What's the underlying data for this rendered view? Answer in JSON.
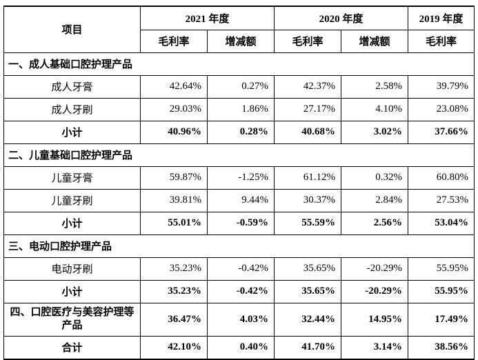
{
  "header": {
    "item_label": "项目",
    "years": [
      "2021 年度",
      "2020 年度",
      "2019 年度"
    ],
    "subcols": [
      "毛利率",
      "增减额",
      "毛利率",
      "增减额",
      "毛利率"
    ]
  },
  "sections": [
    {
      "title": "一、成人基础口腔护理产品",
      "rows": [
        {
          "name": "成人牙膏",
          "values": [
            "42.64%",
            "0.27%",
            "42.37%",
            "2.58%",
            "39.79%"
          ]
        },
        {
          "name": "成人牙刷",
          "values": [
            "29.03%",
            "1.86%",
            "27.17%",
            "4.10%",
            "23.08%"
          ]
        }
      ],
      "subtotal": {
        "name": "小计",
        "values": [
          "40.96%",
          "0.28%",
          "40.68%",
          "3.02%",
          "37.66%"
        ]
      }
    },
    {
      "title": "二、儿童基础口腔护理产品",
      "rows": [
        {
          "name": "儿童牙膏",
          "values": [
            "59.87%",
            "-1.25%",
            "61.12%",
            "0.32%",
            "60.80%"
          ]
        },
        {
          "name": "儿童牙刷",
          "values": [
            "39.81%",
            "9.44%",
            "30.37%",
            "2.84%",
            "27.53%"
          ]
        }
      ],
      "subtotal": {
        "name": "小计",
        "values": [
          "55.01%",
          "-0.59%",
          "55.59%",
          "2.56%",
          "53.04%"
        ]
      }
    },
    {
      "title": "三、电动口腔护理产品",
      "rows": [
        {
          "name": "电动牙刷",
          "values": [
            "35.23%",
            "-0.42%",
            "35.65%",
            "-20.29%",
            "55.95%"
          ]
        }
      ],
      "subtotal": {
        "name": "小计",
        "values": [
          "35.23%",
          "-0.42%",
          "35.65%",
          "-20.29%",
          "55.95%"
        ]
      }
    }
  ],
  "section4": {
    "name": "四、口腔医疗与美容护理等产品",
    "values": [
      "36.47%",
      "4.03%",
      "32.44%",
      "14.95%",
      "17.49%"
    ]
  },
  "total": {
    "name": "合计",
    "values": [
      "42.10%",
      "0.40%",
      "41.70%",
      "3.14%",
      "38.56%"
    ]
  }
}
